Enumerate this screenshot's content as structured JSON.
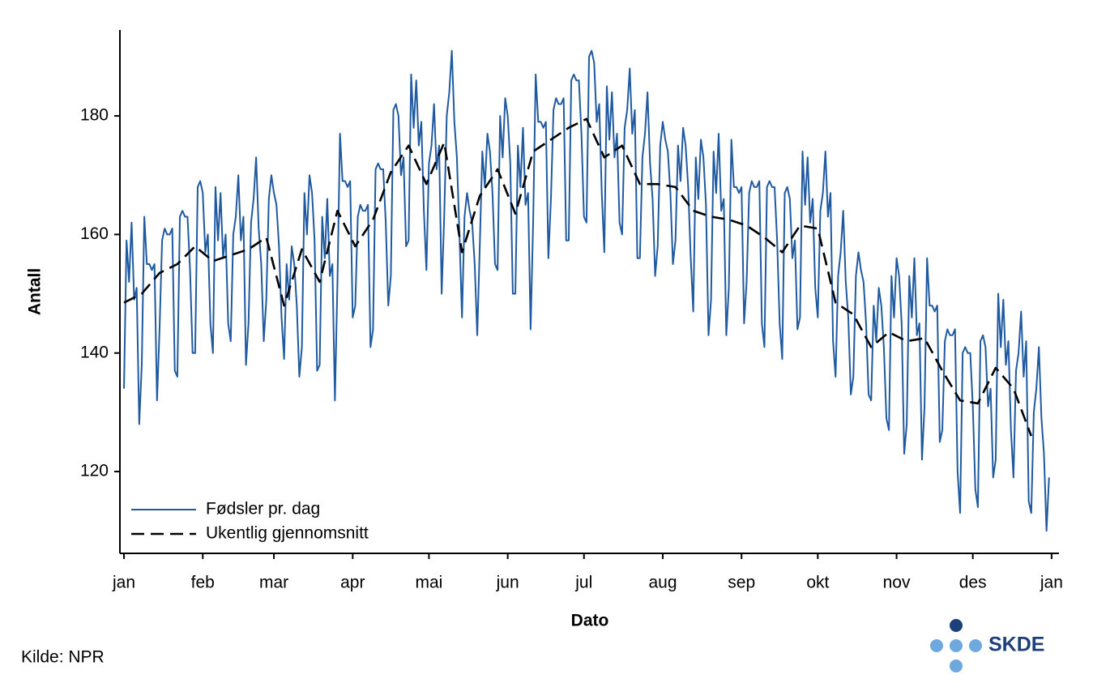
{
  "chart_data": {
    "type": "line",
    "xlabel": "Dato",
    "ylabel": "Antall",
    "source": "Kilde: NPR",
    "logo": "SKDE",
    "xlim": [
      -1.6,
      367.9
    ],
    "ylim": [
      106.2,
      194.5
    ],
    "yticks": [
      120,
      140,
      160,
      180
    ],
    "xticks": [
      {
        "value": 0,
        "label": "jan"
      },
      {
        "value": 31,
        "label": "feb"
      },
      {
        "value": 59,
        "label": "mar"
      },
      {
        "value": 90,
        "label": "apr"
      },
      {
        "value": 120,
        "label": "mai"
      },
      {
        "value": 151,
        "label": "jun"
      },
      {
        "value": 181,
        "label": "jul"
      },
      {
        "value": 212,
        "label": "aug"
      },
      {
        "value": 243,
        "label": "sep"
      },
      {
        "value": 273,
        "label": "okt"
      },
      {
        "value": 304,
        "label": "nov"
      },
      {
        "value": 334,
        "label": "des"
      },
      {
        "value": 365,
        "label": "jan"
      }
    ],
    "legend": "lower left",
    "series": [
      {
        "name": "Fødsler pr. dag",
        "color": "#1f5aa0",
        "dash": false,
        "x": [
          0,
          1,
          2,
          3,
          4,
          5,
          6,
          7,
          8,
          9,
          10,
          11,
          12,
          13,
          14,
          15,
          16,
          17,
          18,
          19,
          20,
          21,
          22,
          23,
          24,
          25,
          26,
          27,
          28,
          29,
          30,
          31,
          32,
          33,
          34,
          35,
          36,
          37,
          38,
          39,
          40,
          41,
          42,
          43,
          44,
          45,
          46,
          47,
          48,
          49,
          50,
          51,
          52,
          53,
          54,
          55,
          56,
          57,
          58,
          59,
          60,
          61,
          62,
          63,
          64,
          65,
          66,
          67,
          68,
          69,
          70,
          71,
          72,
          73,
          74,
          75,
          76,
          77,
          78,
          79,
          80,
          81,
          82,
          83,
          84,
          85,
          86,
          87,
          88,
          89,
          90,
          91,
          92,
          93,
          94,
          95,
          96,
          97,
          98,
          99,
          100,
          101,
          102,
          103,
          104,
          105,
          106,
          107,
          108,
          109,
          110,
          111,
          112,
          113,
          114,
          115,
          116,
          117,
          118,
          119,
          120,
          121,
          122,
          123,
          124,
          125,
          126,
          127,
          128,
          129,
          130,
          131,
          132,
          133,
          134,
          135,
          136,
          137,
          138,
          139,
          140,
          141,
          142,
          143,
          144,
          145,
          146,
          147,
          148,
          149,
          150,
          151,
          152,
          153,
          154,
          155,
          156,
          157,
          158,
          159,
          160,
          161,
          162,
          163,
          164,
          165,
          166,
          167,
          168,
          169,
          170,
          171,
          172,
          173,
          174,
          175,
          176,
          177,
          178,
          179,
          180,
          181,
          182,
          183,
          184,
          185,
          186,
          187,
          188,
          189,
          190,
          191,
          192,
          193,
          194,
          195,
          196,
          197,
          198,
          199,
          200,
          201,
          202,
          203,
          204,
          205,
          206,
          207,
          208,
          209,
          210,
          211,
          212,
          213,
          214,
          215,
          216,
          217,
          218,
          219,
          220,
          221,
          222,
          223,
          224,
          225,
          226,
          227,
          228,
          229,
          230,
          231,
          232,
          233,
          234,
          235,
          236,
          237,
          238,
          239,
          240,
          241,
          242,
          243,
          244,
          245,
          246,
          247,
          248,
          249,
          250,
          251,
          252,
          253,
          254,
          255,
          256,
          257,
          258,
          259,
          260,
          261,
          262,
          263,
          264,
          265,
          266,
          267,
          268,
          269,
          270,
          271,
          272,
          273,
          274,
          275,
          276,
          277,
          278,
          279,
          280,
          281,
          282,
          283,
          284,
          285,
          286,
          287,
          288,
          289,
          290,
          291,
          292,
          293,
          294,
          295,
          296,
          297,
          298,
          299,
          300,
          301,
          302,
          303,
          304,
          305,
          306,
          307,
          308,
          309,
          310,
          311,
          312,
          313,
          314,
          315,
          316,
          317,
          318,
          319,
          320,
          321,
          322,
          323,
          324,
          325,
          326,
          327,
          328,
          329,
          330,
          331,
          332,
          333,
          334,
          335,
          336,
          337,
          338,
          339,
          340,
          341,
          342,
          343,
          344,
          345,
          346,
          347,
          348,
          349,
          350,
          351,
          352,
          353,
          354,
          355,
          356,
          357,
          358,
          359,
          360,
          361,
          362,
          363,
          364
        ],
        "values": [
          134,
          159,
          152,
          162,
          149,
          151,
          128,
          138,
          163,
          155,
          155,
          154,
          155,
          132,
          144,
          159,
          161,
          160,
          160,
          161,
          137,
          136,
          163,
          164,
          163,
          163,
          154,
          140,
          140,
          168,
          169,
          167,
          157,
          160,
          145,
          140,
          168,
          159,
          167,
          156,
          160,
          145,
          142,
          160,
          163,
          170,
          159,
          163,
          138,
          145,
          162,
          166,
          173,
          161,
          155,
          142,
          149,
          166,
          170,
          167,
          165,
          158,
          146,
          139,
          155,
          149,
          158,
          155,
          148,
          136,
          141,
          167,
          160,
          170,
          167,
          159,
          137,
          138,
          163,
          156,
          166,
          153,
          155,
          132,
          152,
          177,
          169,
          169,
          168,
          169,
          146,
          148,
          163,
          165,
          164,
          164,
          165,
          141,
          144,
          171,
          172,
          171,
          171,
          162,
          148,
          153,
          181,
          182,
          180,
          170,
          173,
          158,
          159,
          187,
          178,
          186,
          175,
          179,
          164,
          154,
          172,
          175,
          182,
          171,
          175,
          150,
          163,
          180,
          184,
          191,
          179,
          173,
          160,
          146,
          163,
          167,
          164,
          162,
          155,
          143,
          158,
          174,
          168,
          177,
          174,
          167,
          155,
          154,
          180,
          173,
          183,
          180,
          172,
          150,
          150,
          175,
          168,
          178,
          165,
          167,
          144,
          162,
          187,
          179,
          179,
          178,
          179,
          156,
          166,
          181,
          183,
          182,
          182,
          183,
          159,
          159,
          186,
          187,
          186,
          186,
          177,
          163,
          162,
          190,
          191,
          189,
          179,
          182,
          167,
          157,
          185,
          176,
          184,
          173,
          177,
          162,
          160,
          178,
          181,
          188,
          177,
          181,
          156,
          156,
          173,
          177,
          184,
          172,
          166,
          153,
          158,
          175,
          179,
          176,
          174,
          167,
          155,
          159,
          175,
          169,
          178,
          175,
          168,
          156,
          147,
          173,
          166,
          176,
          173,
          165,
          143,
          149,
          174,
          167,
          177,
          164,
          166,
          143,
          151,
          176,
          168,
          168,
          167,
          168,
          145,
          152,
          167,
          169,
          168,
          168,
          169,
          145,
          141,
          168,
          169,
          168,
          168,
          159,
          145,
          139,
          167,
          168,
          166,
          156,
          159,
          144,
          146,
          174,
          165,
          173,
          162,
          166,
          151,
          146,
          164,
          167,
          174,
          163,
          167,
          142,
          136,
          153,
          157,
          164,
          152,
          146,
          133,
          136,
          153,
          157,
          154,
          152,
          145,
          133,
          132,
          148,
          142,
          151,
          148,
          141,
          129,
          127,
          153,
          146,
          156,
          153,
          145,
          123,
          128,
          153,
          146,
          156,
          143,
          145,
          122,
          131,
          156,
          148,
          148,
          147,
          148,
          125,
          127,
          142,
          144,
          143,
          143,
          144,
          120,
          113,
          140,
          141,
          140,
          140,
          131,
          117,
          114,
          142,
          143,
          141,
          131,
          134,
          119,
          122,
          150,
          141,
          149,
          138,
          142,
          127,
          119,
          137,
          140,
          147,
          136,
          142,
          115,
          113,
          130,
          134,
          141,
          129,
          123,
          110,
          119
        ]
      },
      {
        "name": "Ukentlig gjennomsnitt",
        "color": "#000000",
        "dash": true,
        "x": [
          0,
          7,
          14,
          21,
          28,
          35,
          42,
          49,
          56,
          63,
          70,
          77,
          84,
          91,
          98,
          105,
          112,
          119,
          126,
          133,
          140,
          147,
          154,
          161,
          168,
          175,
          182,
          189,
          196,
          203,
          210,
          217,
          224,
          231,
          238,
          245,
          252,
          259,
          266,
          273,
          280,
          287,
          294,
          301,
          308,
          315,
          322,
          329,
          336,
          343,
          350,
          357
        ],
        "values": [
          148.5,
          150,
          153.5,
          155,
          158,
          155.5,
          156.5,
          157.5,
          159.5,
          148,
          157.5,
          152,
          164,
          158,
          162.5,
          170.5,
          175,
          168.5,
          175.5,
          157,
          166.5,
          171,
          163.5,
          174,
          176,
          178,
          179.5,
          173,
          175,
          168.5,
          168.5,
          168,
          164,
          163,
          162.5,
          161.5,
          159.5,
          157,
          161.5,
          161,
          148.5,
          146.5,
          141,
          143.5,
          142,
          142.5,
          137,
          132,
          131.5,
          137.5,
          134,
          126
        ]
      }
    ]
  }
}
